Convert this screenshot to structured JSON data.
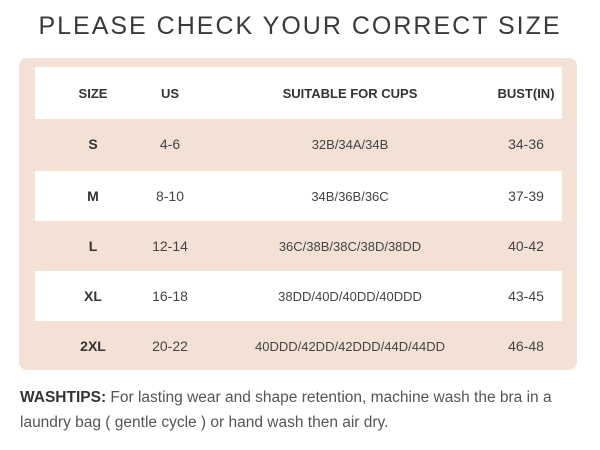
{
  "title": "PLEASE CHECK YOUR CORRECT SIZE",
  "colors": {
    "panel": "#f4e1d6",
    "row_alt": "#ffffff"
  },
  "table": {
    "headers": [
      "SIZE",
      "US",
      "SUITABLE FOR CUPS",
      "BUST(IN)"
    ],
    "rows": [
      [
        "S",
        "4-6",
        "32B/34A/34B",
        "34-36"
      ],
      [
        "M",
        "8-10",
        "34B/36B/36C",
        "37-39"
      ],
      [
        "L",
        "12-14",
        "36C/38B/38C/38D/38DD",
        "40-42"
      ],
      [
        "XL",
        "16-18",
        "38DD/40D/40DD/40DDD",
        "43-45"
      ],
      [
        "2XL",
        "20-22",
        "40DDD/42DD/42DDD/44D/44DD",
        "46-48"
      ]
    ]
  },
  "washtips": {
    "label": "WASHTIPS:",
    "text": " For lasting wear and shape retention, machine wash the bra in a laundry bag ( gentle cycle ) or hand wash then air dry."
  }
}
